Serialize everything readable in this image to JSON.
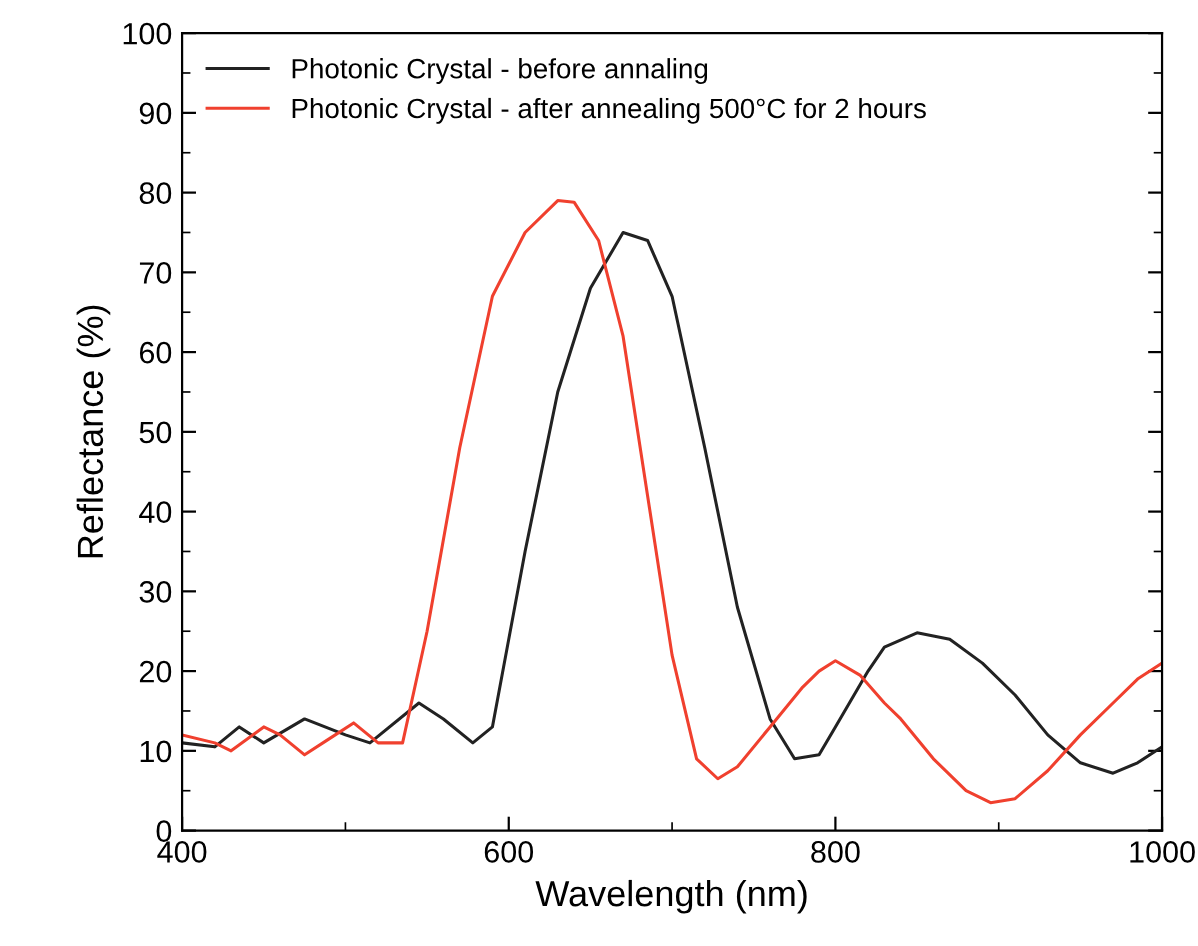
{
  "chart_data": {
    "type": "line",
    "xlabel": "Wavelength (nm)",
    "ylabel": "Reflectance (%)",
    "xlim": [
      400,
      1000
    ],
    "ylim": [
      0,
      100
    ],
    "xticks": [
      400,
      600,
      800,
      1000
    ],
    "yticks": [
      0,
      10,
      20,
      30,
      40,
      50,
      60,
      70,
      80,
      90,
      100
    ],
    "legend": "top left",
    "grid": false,
    "marker": "none",
    "line_style": "solid",
    "series": [
      {
        "name": "Photonic Crystal - before annaling",
        "color": "#222222",
        "x": [
          400,
          420,
          435,
          450,
          475,
          500,
          515,
          545,
          560,
          578,
          590,
          610,
          630,
          650,
          670,
          685,
          700,
          720,
          740,
          760,
          775,
          790,
          800,
          820,
          830,
          850,
          870,
          890,
          910,
          930,
          950,
          970,
          985,
          1000
        ],
        "values": [
          11,
          10.5,
          13,
          11,
          14,
          12,
          11,
          16,
          14,
          11,
          13,
          35,
          55,
          68,
          75,
          74,
          67,
          48,
          28,
          14,
          9,
          9.5,
          13,
          20,
          23,
          24.8,
          24,
          21,
          17,
          12,
          8.5,
          7.2,
          8.5,
          10.5
        ]
      },
      {
        "name": "Photonic Crystal - after annealing 500°C for 2 hours",
        "color": "#f0402e",
        "x": [
          400,
          420,
          430,
          450,
          460,
          475,
          490,
          505,
          520,
          535,
          550,
          570,
          590,
          610,
          630,
          640,
          655,
          670,
          685,
          700,
          715,
          728,
          740,
          760,
          780,
          790,
          800,
          815,
          830,
          840,
          860,
          880,
          895,
          910,
          930,
          950,
          970,
          985,
          1000
        ],
        "values": [
          12,
          11,
          10,
          13,
          12,
          9.5,
          11.5,
          13.5,
          11,
          11,
          25,
          48,
          67,
          75,
          79,
          78.8,
          74,
          62,
          42,
          22,
          9,
          6.5,
          8,
          13,
          18,
          20,
          21.3,
          19.5,
          16,
          14,
          9,
          5,
          3.5,
          4,
          7.5,
          12,
          16,
          19,
          21
        ]
      }
    ]
  }
}
